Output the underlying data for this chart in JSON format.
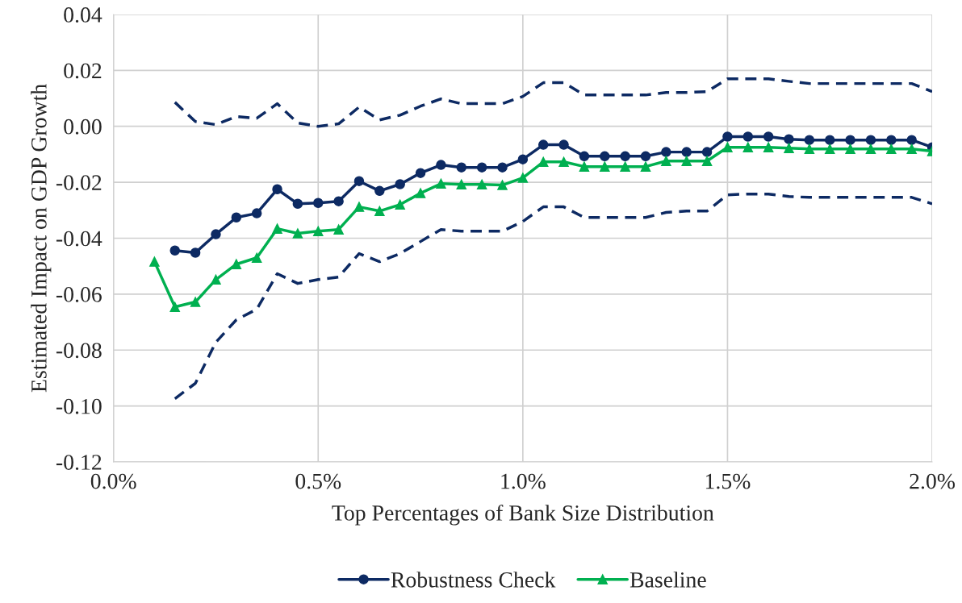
{
  "chart_data": {
    "type": "line",
    "xlabel": "Top Percentages of Bank Size Distribution",
    "ylabel": "Estimated Impact on GDP Growth",
    "xlim": [
      0,
      2.0
    ],
    "xticks": [
      {
        "value": 0,
        "label": "0.0%"
      },
      {
        "value": 0.5,
        "label": "0.5%"
      },
      {
        "value": 1.0,
        "label": "1.0%"
      },
      {
        "value": 1.5,
        "label": "1.5%"
      },
      {
        "value": 2.0,
        "label": "2.0%"
      }
    ],
    "ylim": [
      -0.12,
      0.04
    ],
    "yticks": [
      {
        "value": -0.12,
        "label": "-0.12"
      },
      {
        "value": -0.1,
        "label": "-0.10"
      },
      {
        "value": -0.08,
        "label": "-0.08"
      },
      {
        "value": -0.06,
        "label": "-0.06"
      },
      {
        "value": -0.04,
        "label": "-0.04"
      },
      {
        "value": -0.02,
        "label": "-0.02"
      },
      {
        "value": 0,
        "label": "0.00"
      },
      {
        "value": 0.02,
        "label": "0.02"
      },
      {
        "value": 0.04,
        "label": "0.04"
      }
    ],
    "grid": true,
    "legend": "bottom",
    "series": [
      {
        "color": "#0d2a63",
        "line_style": "dashed",
        "marker": "none",
        "x": [
          0.15,
          0.2,
          0.25,
          0.3,
          0.35,
          0.4,
          0.45,
          0.5,
          0.55,
          0.6,
          0.65,
          0.7,
          0.75,
          0.8,
          0.85,
          0.9,
          0.95,
          1.0,
          1.05,
          1.1,
          1.15,
          1.2,
          1.25,
          1.3,
          1.35,
          1.4,
          1.45,
          1.5,
          1.55,
          1.6,
          1.65,
          1.7,
          1.75,
          1.8,
          1.85,
          1.9,
          1.95,
          2.0
        ],
        "values": [
          0.0086,
          0.0017,
          0.0006,
          0.0035,
          0.0029,
          0.0081,
          0.0012,
          0.0,
          0.0009,
          0.0069,
          0.0023,
          0.004,
          0.0072,
          0.0098,
          0.0081,
          0.0081,
          0.0081,
          0.0107,
          0.0156,
          0.0156,
          0.0112,
          0.0112,
          0.0112,
          0.0112,
          0.0121,
          0.0121,
          0.0124,
          0.017,
          0.017,
          0.017,
          0.0161,
          0.0153,
          0.0153,
          0.0153,
          0.0153,
          0.0153,
          0.0153,
          0.0124
        ]
      },
      {
        "color": "#0d2a63",
        "line_style": "dashed",
        "marker": "none",
        "x": [
          0.15,
          0.2,
          0.25,
          0.3,
          0.35,
          0.4,
          0.45,
          0.5,
          0.55,
          0.6,
          0.65,
          0.7,
          0.75,
          0.8,
          0.85,
          0.9,
          0.95,
          1.0,
          1.05,
          1.1,
          1.15,
          1.2,
          1.25,
          1.3,
          1.35,
          1.4,
          1.45,
          1.5,
          1.55,
          1.6,
          1.65,
          1.7,
          1.75,
          1.8,
          1.85,
          1.9,
          1.95,
          2.0
        ],
        "values": [
          -0.0974,
          -0.0919,
          -0.0772,
          -0.0692,
          -0.0654,
          -0.0527,
          -0.0562,
          -0.0548,
          -0.0539,
          -0.0455,
          -0.0484,
          -0.0455,
          -0.0412,
          -0.0369,
          -0.0375,
          -0.0375,
          -0.0375,
          -0.034,
          -0.0288,
          -0.0288,
          -0.0326,
          -0.0326,
          -0.0326,
          -0.0326,
          -0.0308,
          -0.0303,
          -0.0303,
          -0.0245,
          -0.0242,
          -0.0242,
          -0.0251,
          -0.0254,
          -0.0254,
          -0.0254,
          -0.0254,
          -0.0254,
          -0.0254,
          -0.0277
        ]
      },
      {
        "name": "Robustness Check",
        "color": "#0d2a63",
        "line_style": "solid",
        "marker": "circle",
        "x": [
          0.15,
          0.2,
          0.25,
          0.3,
          0.35,
          0.4,
          0.45,
          0.5,
          0.55,
          0.6,
          0.65,
          0.7,
          0.75,
          0.8,
          0.85,
          0.9,
          0.95,
          1.0,
          1.05,
          1.1,
          1.15,
          1.2,
          1.25,
          1.3,
          1.35,
          1.4,
          1.45,
          1.5,
          1.55,
          1.6,
          1.65,
          1.7,
          1.75,
          1.8,
          1.85,
          1.9,
          1.95,
          2.0
        ],
        "values": [
          -0.0444,
          -0.0452,
          -0.0386,
          -0.0326,
          -0.0311,
          -0.0225,
          -0.0277,
          -0.0274,
          -0.0268,
          -0.0196,
          -0.0231,
          -0.0207,
          -0.0167,
          -0.0138,
          -0.0147,
          -0.0147,
          -0.0147,
          -0.0118,
          -0.0066,
          -0.0066,
          -0.0107,
          -0.0107,
          -0.0107,
          -0.0107,
          -0.0092,
          -0.0092,
          -0.0092,
          -0.0037,
          -0.0037,
          -0.0037,
          -0.0046,
          -0.0049,
          -0.0049,
          -0.0049,
          -0.0049,
          -0.0049,
          -0.0049,
          -0.0075
        ]
      },
      {
        "name": "Baseline",
        "color": "#00b050",
        "line_style": "solid",
        "marker": "triangle",
        "x": [
          0.1,
          0.15,
          0.2,
          0.25,
          0.3,
          0.35,
          0.4,
          0.45,
          0.5,
          0.55,
          0.6,
          0.65,
          0.7,
          0.75,
          0.8,
          0.85,
          0.9,
          0.95,
          1.0,
          1.05,
          1.1,
          1.15,
          1.2,
          1.25,
          1.3,
          1.35,
          1.4,
          1.45,
          1.5,
          1.55,
          1.6,
          1.65,
          1.7,
          1.75,
          1.8,
          1.85,
          1.9,
          1.95,
          2.0
        ],
        "values": [
          -0.0484,
          -0.0646,
          -0.0628,
          -0.0548,
          -0.0493,
          -0.047,
          -0.0366,
          -0.0383,
          -0.0375,
          -0.0369,
          -0.0288,
          -0.0303,
          -0.028,
          -0.0239,
          -0.0205,
          -0.0208,
          -0.0208,
          -0.021,
          -0.0184,
          -0.0127,
          -0.0127,
          -0.0144,
          -0.0144,
          -0.0144,
          -0.0144,
          -0.0124,
          -0.0124,
          -0.0124,
          -0.0075,
          -0.0075,
          -0.0075,
          -0.0078,
          -0.0081,
          -0.0081,
          -0.0081,
          -0.0081,
          -0.0081,
          -0.0081,
          -0.0089
        ]
      }
    ]
  }
}
